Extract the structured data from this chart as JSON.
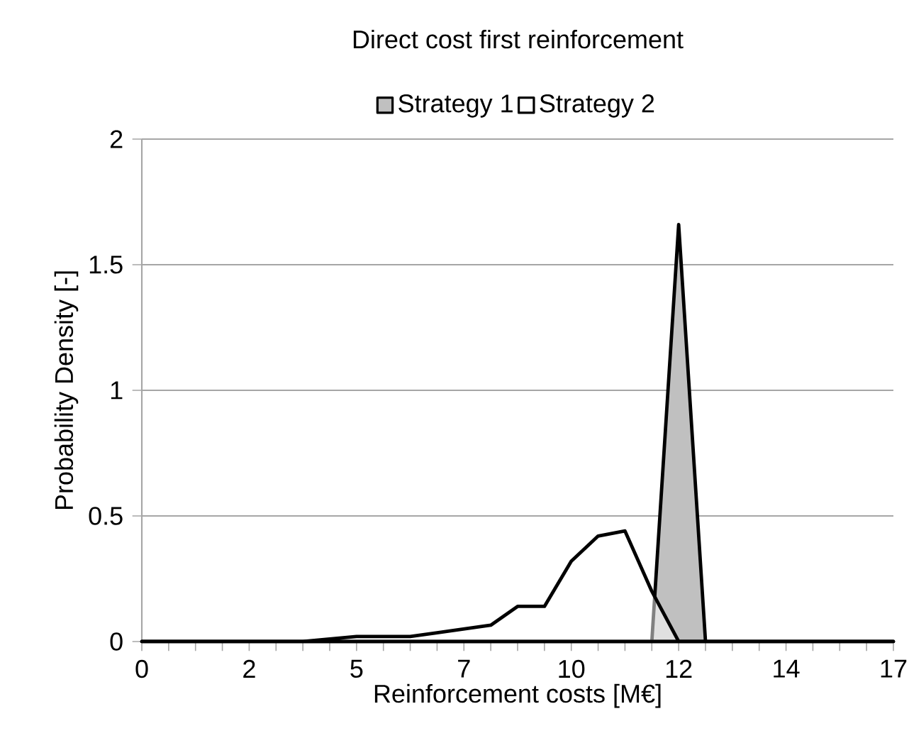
{
  "chart_data": {
    "type": "area",
    "title": "Direct cost first reinforcement",
    "xlabel": "Reinforcement costs [M€]",
    "ylabel": "Probability Density [-]",
    "categories": [
      "0",
      null,
      null,
      null,
      "2",
      null,
      null,
      null,
      "5",
      null,
      null,
      null,
      "7",
      null,
      null,
      null,
      "10",
      null,
      null,
      null,
      "12",
      null,
      null,
      null,
      "14",
      null,
      null,
      null,
      "17"
    ],
    "series": [
      {
        "name": "Strategy 1",
        "color": "#c0c0c0",
        "values": [
          0,
          0,
          0,
          0,
          0,
          0,
          0,
          0,
          0,
          0,
          0,
          0,
          0,
          0,
          0,
          0,
          0,
          0,
          0,
          0,
          1.66,
          0,
          0,
          0,
          0,
          0,
          0,
          0,
          0
        ]
      },
      {
        "name": "Strategy 2",
        "color": "#ffffff",
        "values": [
          0,
          0,
          0,
          0,
          0,
          0,
          0,
          0.01,
          0.02,
          0.02,
          0.02,
          0.035,
          0.05,
          0.065,
          0.14,
          0.14,
          0.32,
          0.42,
          0.44,
          0.2,
          0,
          0,
          0,
          0,
          0,
          0,
          0,
          0,
          0
        ]
      }
    ],
    "ylim": [
      0,
      2
    ],
    "yticks": [
      0,
      0.5,
      1,
      1.5,
      2
    ],
    "grid": "y",
    "legend": "top"
  }
}
